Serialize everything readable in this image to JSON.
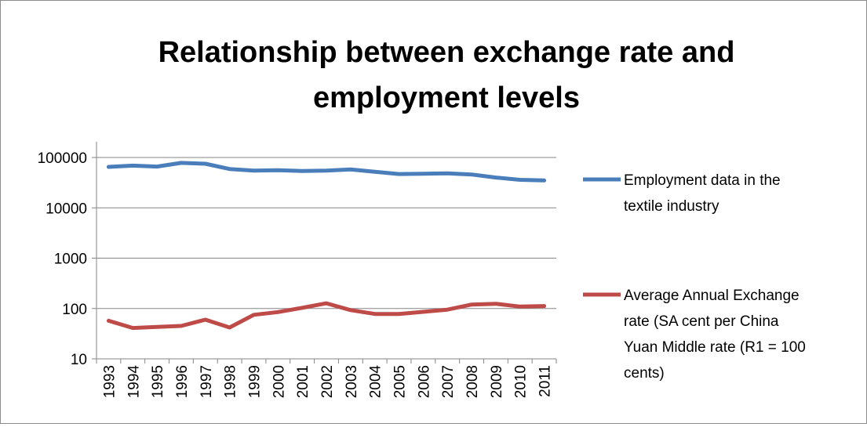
{
  "chart_data": {
    "type": "line",
    "title_lines": [
      "Relationship between exchange rate and",
      "employment levels"
    ],
    "xlabel": "",
    "ylabel": "",
    "y_scale": "log",
    "ylim": [
      10,
      100000
    ],
    "y_ticks": [
      10,
      100,
      1000,
      10000,
      100000
    ],
    "y_tick_labels": [
      "10",
      "100",
      "1000",
      "10000",
      "100000"
    ],
    "grid": true,
    "legend_position": "right",
    "categories": [
      "1993",
      "1994",
      "1995",
      "1996",
      "1997",
      "1998",
      "1999",
      "2000",
      "2001",
      "2002",
      "2003",
      "2004",
      "2005",
      "2006",
      "2007",
      "2008",
      "2009",
      "2010",
      "2011"
    ],
    "series": [
      {
        "name_lines": [
          "Employment data in the",
          "textile industry"
        ],
        "color": "#4a7ebb",
        "values": [
          65000,
          69000,
          66000,
          78000,
          75000,
          59000,
          55000,
          56000,
          54000,
          55000,
          58000,
          52000,
          47000,
          47500,
          48500,
          46000,
          40000,
          36000,
          35000
        ]
      },
      {
        "name_lines": [
          "Average Annual Exchange",
          "rate (SA cent per China",
          "Yuan Middle rate (R1 = 100",
          "cents)"
        ],
        "color": "#be4b48",
        "values": [
          57,
          41,
          43,
          45,
          60,
          42,
          75,
          85,
          103,
          127,
          93,
          78,
          78,
          86,
          95,
          120,
          124,
          109,
          112
        ]
      }
    ]
  }
}
